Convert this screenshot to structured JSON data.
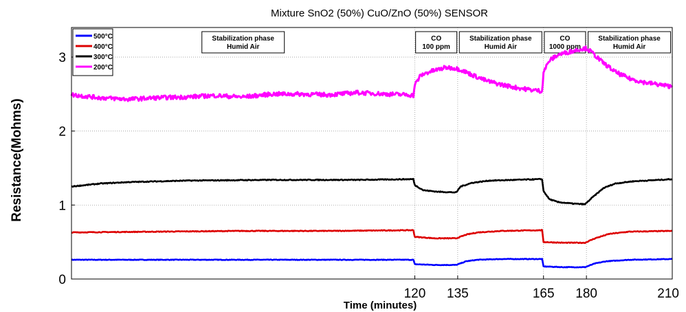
{
  "chart_data": {
    "type": "line",
    "title": "Mixture SnO2 (50%) CuO/ZnO (50%) SENSOR",
    "xlabel": "Time (minutes)",
    "ylabel": "Resistance(Mohms)",
    "xlim": [
      0,
      210
    ],
    "ylim": [
      0,
      3.4
    ],
    "x_ticks": [
      "120",
      "135",
      "165",
      "180",
      "210"
    ],
    "y_ticks": [
      "0",
      "1",
      "2",
      "3"
    ],
    "grid": true,
    "legend_position": "top-left",
    "phases": [
      {
        "start": 0,
        "end": 120,
        "lines": [
          "Stabilization phase",
          "Humid Air"
        ]
      },
      {
        "start": 120,
        "end": 135,
        "lines": [
          "CO",
          "100 ppm"
        ]
      },
      {
        "start": 135,
        "end": 165,
        "lines": [
          "Stabilization phase",
          "Humid Air"
        ]
      },
      {
        "start": 165,
        "end": 180,
        "lines": [
          "CO",
          "1000 ppm"
        ]
      },
      {
        "start": 180,
        "end": 210,
        "lines": [
          "Stabilization phase",
          "Humid Air"
        ]
      }
    ],
    "series": [
      {
        "name": "500°C",
        "color": "#0000ff",
        "points": [
          [
            0,
            0.26
          ],
          [
            30,
            0.26
          ],
          [
            60,
            0.26
          ],
          [
            90,
            0.26
          ],
          [
            119.5,
            0.26
          ],
          [
            120,
            0.2
          ],
          [
            127,
            0.19
          ],
          [
            134.5,
            0.19
          ],
          [
            138,
            0.24
          ],
          [
            142,
            0.26
          ],
          [
            150,
            0.27
          ],
          [
            164.5,
            0.27
          ],
          [
            165,
            0.17
          ],
          [
            172,
            0.16
          ],
          [
            179.5,
            0.16
          ],
          [
            183,
            0.21
          ],
          [
            187,
            0.24
          ],
          [
            195,
            0.26
          ],
          [
            210,
            0.27
          ]
        ]
      },
      {
        "name": "400°C",
        "color": "#dd0000",
        "points": [
          [
            0,
            0.63
          ],
          [
            30,
            0.64
          ],
          [
            60,
            0.65
          ],
          [
            90,
            0.65
          ],
          [
            119.5,
            0.66
          ],
          [
            120,
            0.57
          ],
          [
            127,
            0.55
          ],
          [
            134.5,
            0.55
          ],
          [
            138,
            0.6
          ],
          [
            142,
            0.63
          ],
          [
            150,
            0.65
          ],
          [
            164.5,
            0.66
          ],
          [
            165,
            0.5
          ],
          [
            172,
            0.49
          ],
          [
            179.5,
            0.49
          ],
          [
            183,
            0.55
          ],
          [
            188,
            0.61
          ],
          [
            195,
            0.64
          ],
          [
            210,
            0.65
          ]
        ]
      },
      {
        "name": "300°C",
        "color": "#000000",
        "points": [
          [
            0,
            1.25
          ],
          [
            10,
            1.29
          ],
          [
            20,
            1.31
          ],
          [
            40,
            1.33
          ],
          [
            70,
            1.34
          ],
          [
            100,
            1.34
          ],
          [
            119.5,
            1.35
          ],
          [
            120,
            1.27
          ],
          [
            123,
            1.2
          ],
          [
            128,
            1.18
          ],
          [
            134.5,
            1.17
          ],
          [
            136,
            1.25
          ],
          [
            140,
            1.3
          ],
          [
            146,
            1.33
          ],
          [
            155,
            1.34
          ],
          [
            164.5,
            1.35
          ],
          [
            165,
            1.19
          ],
          [
            167,
            1.08
          ],
          [
            170,
            1.04
          ],
          [
            175,
            1.02
          ],
          [
            179.5,
            1.01
          ],
          [
            182,
            1.1
          ],
          [
            186,
            1.23
          ],
          [
            190,
            1.29
          ],
          [
            196,
            1.32
          ],
          [
            210,
            1.35
          ]
        ]
      },
      {
        "name": "200°C",
        "color": "#ff00ff",
        "points": [
          [
            0,
            2.49
          ],
          [
            10,
            2.45
          ],
          [
            20,
            2.43
          ],
          [
            30,
            2.45
          ],
          [
            40,
            2.46
          ],
          [
            50,
            2.48
          ],
          [
            60,
            2.46
          ],
          [
            70,
            2.5
          ],
          [
            80,
            2.5
          ],
          [
            90,
            2.49
          ],
          [
            100,
            2.52
          ],
          [
            110,
            2.5
          ],
          [
            118,
            2.49
          ],
          [
            119.5,
            2.48
          ],
          [
            120,
            2.62
          ],
          [
            122,
            2.75
          ],
          [
            125,
            2.8
          ],
          [
            128,
            2.83
          ],
          [
            131,
            2.86
          ],
          [
            134,
            2.85
          ],
          [
            136,
            2.83
          ],
          [
            140,
            2.76
          ],
          [
            145,
            2.68
          ],
          [
            150,
            2.63
          ],
          [
            155,
            2.59
          ],
          [
            160,
            2.56
          ],
          [
            164.5,
            2.54
          ],
          [
            165,
            2.8
          ],
          [
            167,
            2.95
          ],
          [
            170,
            3.03
          ],
          [
            174,
            3.07
          ],
          [
            178,
            3.11
          ],
          [
            180,
            3.12
          ],
          [
            182,
            3.06
          ],
          [
            185,
            2.95
          ],
          [
            190,
            2.8
          ],
          [
            195,
            2.71
          ],
          [
            200,
            2.66
          ],
          [
            205,
            2.63
          ],
          [
            210,
            2.6
          ]
        ]
      }
    ]
  }
}
